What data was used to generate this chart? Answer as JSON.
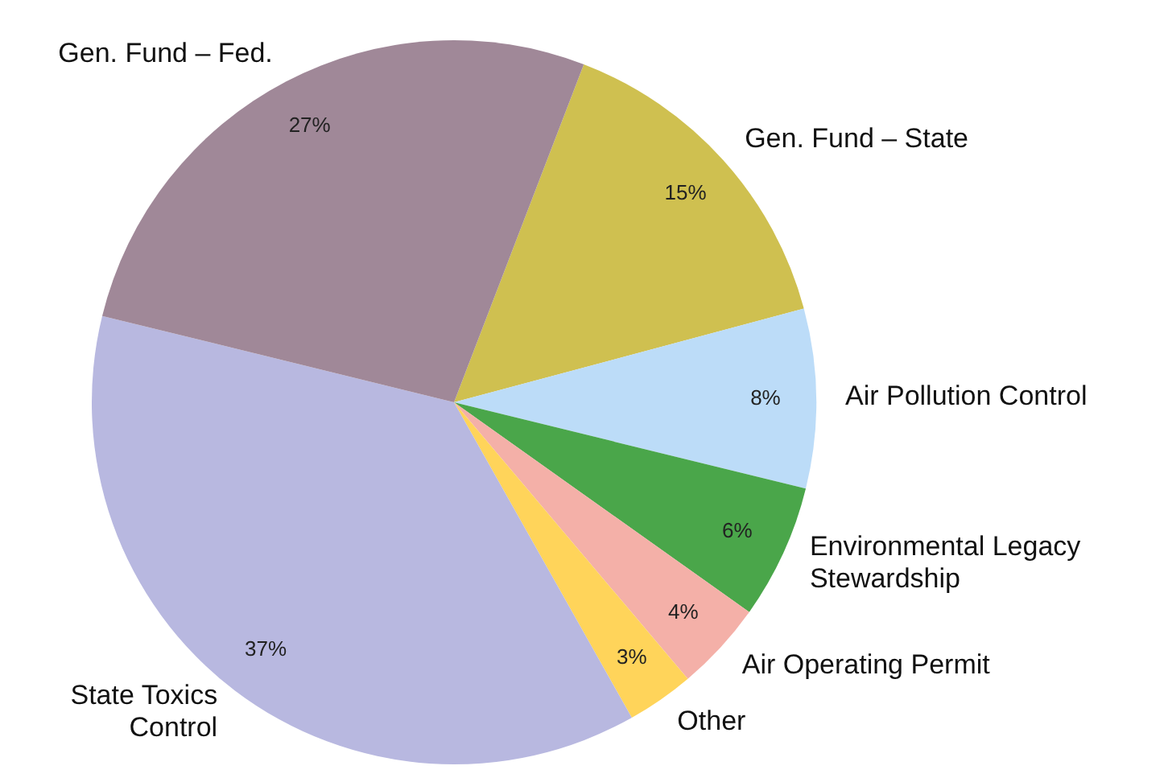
{
  "chart_data": {
    "type": "pie",
    "categories": [
      "Gen. Fund – State",
      "Air Pollution Control",
      "Environmental Legacy Stewardship",
      "Air Operating Permit",
      "Other",
      "State Toxics Control",
      "Gen. Fund – Fed."
    ],
    "values": [
      15,
      8,
      6,
      4,
      3,
      37,
      27
    ],
    "colors": [
      "#cfc050",
      "#bcdcf8",
      "#4aa64a",
      "#f4b0a8",
      "#ffd45a",
      "#b8b8e0",
      "#a08898"
    ],
    "value_labels": [
      "15%",
      "8%",
      "6%",
      "4%",
      "3%",
      "37%",
      "27%"
    ]
  }
}
